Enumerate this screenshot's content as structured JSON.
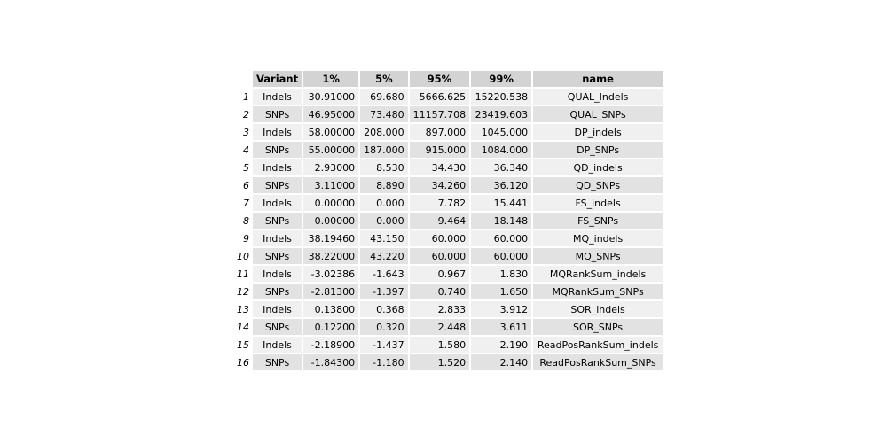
{
  "chart_data": {
    "type": "table",
    "columns": [
      "",
      "Variant",
      "1%",
      "5%",
      "95%",
      "99%",
      "name"
    ],
    "rows": [
      [
        "1",
        "Indels",
        "30.91000",
        "69.680",
        "5666.625",
        "15220.538",
        "QUAL_Indels"
      ],
      [
        "2",
        "SNPs",
        "46.95000",
        "73.480",
        "11157.708",
        "23419.603",
        "QUAL_SNPs"
      ],
      [
        "3",
        "Indels",
        "58.00000",
        "208.000",
        "897.000",
        "1045.000",
        "DP_indels"
      ],
      [
        "4",
        "SNPs",
        "55.00000",
        "187.000",
        "915.000",
        "1084.000",
        "DP_SNPs"
      ],
      [
        "5",
        "Indels",
        "2.93000",
        "8.530",
        "34.430",
        "36.340",
        "QD_indels"
      ],
      [
        "6",
        "SNPs",
        "3.11000",
        "8.890",
        "34.260",
        "36.120",
        "QD_SNPs"
      ],
      [
        "7",
        "Indels",
        "0.00000",
        "0.000",
        "7.782",
        "15.441",
        "FS_indels"
      ],
      [
        "8",
        "SNPs",
        "0.00000",
        "0.000",
        "9.464",
        "18.148",
        "FS_SNPs"
      ],
      [
        "9",
        "Indels",
        "38.19460",
        "43.150",
        "60.000",
        "60.000",
        "MQ_indels"
      ],
      [
        "10",
        "SNPs",
        "38.22000",
        "43.220",
        "60.000",
        "60.000",
        "MQ_SNPs"
      ],
      [
        "11",
        "Indels",
        "-3.02386",
        "-1.643",
        "0.967",
        "1.830",
        "MQRankSum_indels"
      ],
      [
        "12",
        "SNPs",
        "-2.81300",
        "-1.397",
        "0.740",
        "1.650",
        "MQRankSum_SNPs"
      ],
      [
        "13",
        "Indels",
        "0.13800",
        "0.368",
        "2.833",
        "3.912",
        "SOR_indels"
      ],
      [
        "14",
        "SNPs",
        "0.12200",
        "0.320",
        "2.448",
        "3.611",
        "SOR_SNPs"
      ],
      [
        "15",
        "Indels",
        "-2.18900",
        "-1.437",
        "1.580",
        "2.190",
        "ReadPosRankSum_indels"
      ],
      [
        "16",
        "SNPs",
        "-1.84300",
        "-1.180",
        "1.520",
        "2.140",
        "ReadPosRankSum_SNPs"
      ]
    ],
    "colors": {
      "header_bg": "#d3d3d3",
      "row_odd_bg": "#f0f0f0",
      "row_even_bg": "#e2e2e2"
    }
  }
}
